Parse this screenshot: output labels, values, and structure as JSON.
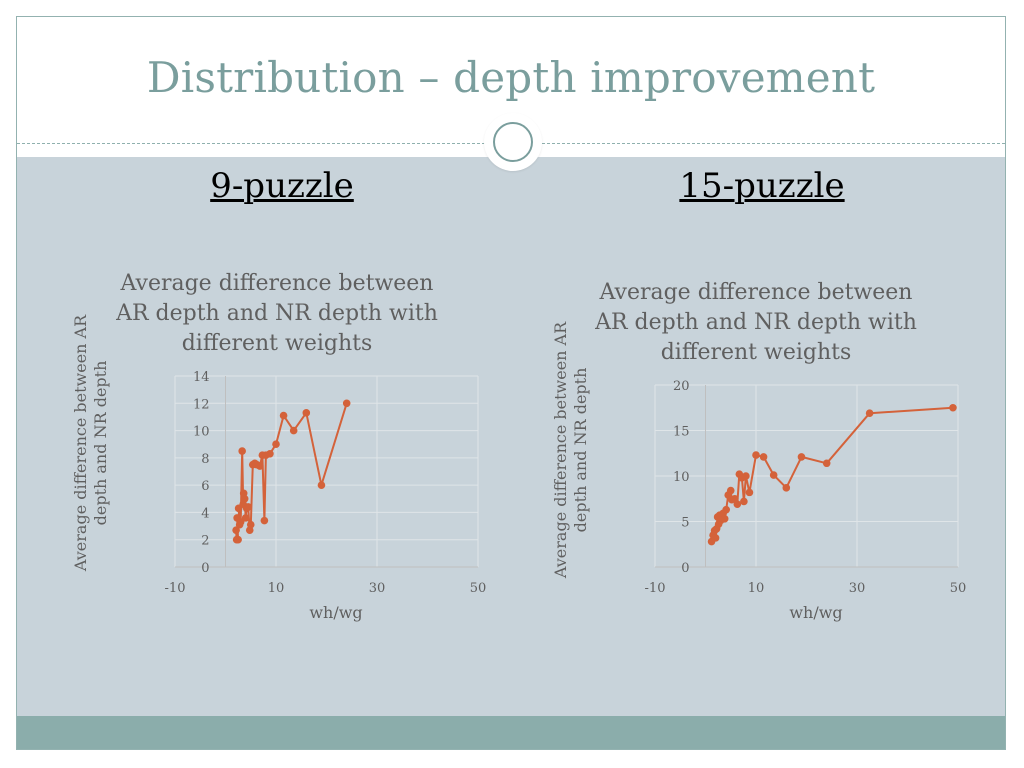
{
  "slide": {
    "title": "Distribution – depth improvement",
    "headings": [
      "9-puzzle",
      "15-puzzle"
    ]
  },
  "colors": {
    "accent": "#7a9e9d",
    "content_bg": "#c8d3da",
    "footer": "#8badab",
    "series": "#d4623a",
    "grid": "#dfe5e8"
  },
  "chart_data": [
    {
      "type": "scatter",
      "title_lines": [
        "Average difference between",
        "AR depth and NR depth with",
        "different weights"
      ],
      "xlabel": "wh/wg",
      "ylabel_lines": [
        "Average difference between AR",
        "depth and NR depth"
      ],
      "xlim": [
        -10,
        50
      ],
      "ylim": [
        0,
        14
      ],
      "x_ticks": [
        -10,
        10,
        30,
        50
      ],
      "y_ticks": [
        0,
        2,
        4,
        6,
        8,
        10,
        12,
        14
      ],
      "grid": true,
      "legend": "none",
      "series": [
        {
          "x": [
            2.2,
            2.1,
            2.5,
            2.3,
            2.8,
            2.6,
            3.0,
            3.3,
            3.5,
            3.6,
            3.8,
            4.0,
            4.2,
            4.5,
            4.8,
            5.0,
            5.4,
            5.8,
            6.2,
            6.8,
            7.3,
            7.7,
            8.0,
            8.8,
            10.0,
            11.5,
            13.5,
            16.0,
            19.0,
            24.0
          ],
          "y": [
            2.0,
            2.7,
            2.0,
            3.6,
            3.1,
            4.3,
            3.3,
            8.5,
            4.6,
            5.4,
            5.0,
            3.6,
            4.3,
            4.4,
            2.7,
            3.1,
            7.5,
            7.6,
            7.5,
            7.4,
            8.2,
            3.4,
            8.2,
            8.3,
            9.0,
            11.1,
            10.0,
            11.3,
            6.0,
            12.0
          ]
        }
      ]
    },
    {
      "type": "scatter",
      "title_lines": [
        "Average difference between",
        "AR depth and NR depth with",
        "different weights"
      ],
      "xlabel": "wh/wg",
      "ylabel_lines": [
        "Average difference between AR",
        "depth and NR depth"
      ],
      "xlim": [
        -10,
        50
      ],
      "ylim": [
        0,
        20
      ],
      "x_ticks": [
        -10,
        10,
        30,
        50
      ],
      "y_ticks": [
        0,
        5,
        10,
        15,
        20
      ],
      "grid": true,
      "legend": "none",
      "series": [
        {
          "x": [
            1.2,
            1.5,
            1.8,
            2.0,
            2.2,
            2.4,
            2.6,
            2.8,
            3.0,
            3.2,
            3.5,
            3.8,
            4.1,
            4.5,
            5.0,
            5.2,
            5.8,
            6.3,
            6.7,
            7.2,
            7.6,
            8.0,
            8.7,
            10.0,
            11.5,
            13.5,
            16.0,
            19.0,
            24.0,
            32.5,
            49.0
          ],
          "y": [
            2.8,
            3.5,
            4.0,
            3.2,
            4.2,
            5.5,
            4.7,
            5.7,
            5.1,
            5.6,
            5.9,
            5.3,
            6.3,
            7.9,
            8.4,
            7.4,
            7.5,
            6.9,
            10.2,
            9.8,
            7.2,
            10.0,
            8.2,
            12.3,
            12.1,
            10.1,
            8.7,
            12.1,
            11.4,
            16.9,
            17.5
          ]
        }
      ]
    }
  ]
}
